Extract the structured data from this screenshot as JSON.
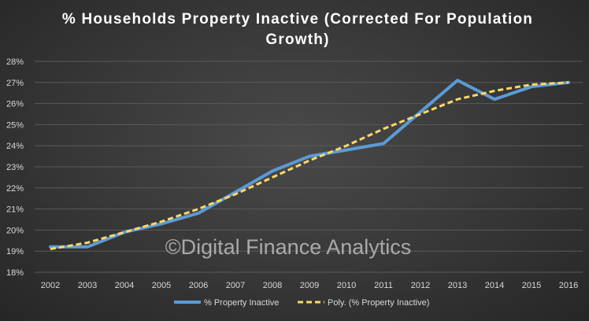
{
  "title_lines": [
    "% Households  Property  Inactive (Corrected For Population",
    "Growth)"
  ],
  "watermark": "©Digital Finance Analytics",
  "colors": {
    "series_actual": "#5b9bd5",
    "series_trend": "#ffd966",
    "gridline": "#5a5a5a",
    "text": "#d9d9d9"
  },
  "chart_data": {
    "type": "line",
    "title": "% Households  Property  Inactive (Corrected For Population Growth)",
    "xlabel": "",
    "ylabel": "",
    "categories": [
      "2002",
      "2003",
      "2004",
      "2005",
      "2006",
      "2007",
      "2008",
      "2009",
      "2010",
      "2011",
      "2012",
      "2013",
      "2014",
      "2015",
      "2016"
    ],
    "y_ticks": [
      "18%",
      "19%",
      "20%",
      "21%",
      "22%",
      "23%",
      "24%",
      "25%",
      "26%",
      "27%",
      "28%"
    ],
    "ylim": [
      18,
      28
    ],
    "grid": true,
    "legend_position": "bottom",
    "series": [
      {
        "name": "% Property Inactive",
        "style": "solid",
        "values": [
          19.2,
          19.2,
          19.9,
          20.3,
          20.8,
          21.8,
          22.8,
          23.5,
          23.8,
          24.1,
          25.6,
          27.1,
          26.2,
          26.8,
          27.0
        ]
      },
      {
        "name": "Poly. (% Property Inactive)",
        "style": "dashed",
        "values": [
          19.1,
          19.4,
          19.9,
          20.4,
          21.0,
          21.7,
          22.5,
          23.3,
          24.0,
          24.8,
          25.5,
          26.2,
          26.6,
          26.9,
          27.0
        ]
      }
    ]
  }
}
